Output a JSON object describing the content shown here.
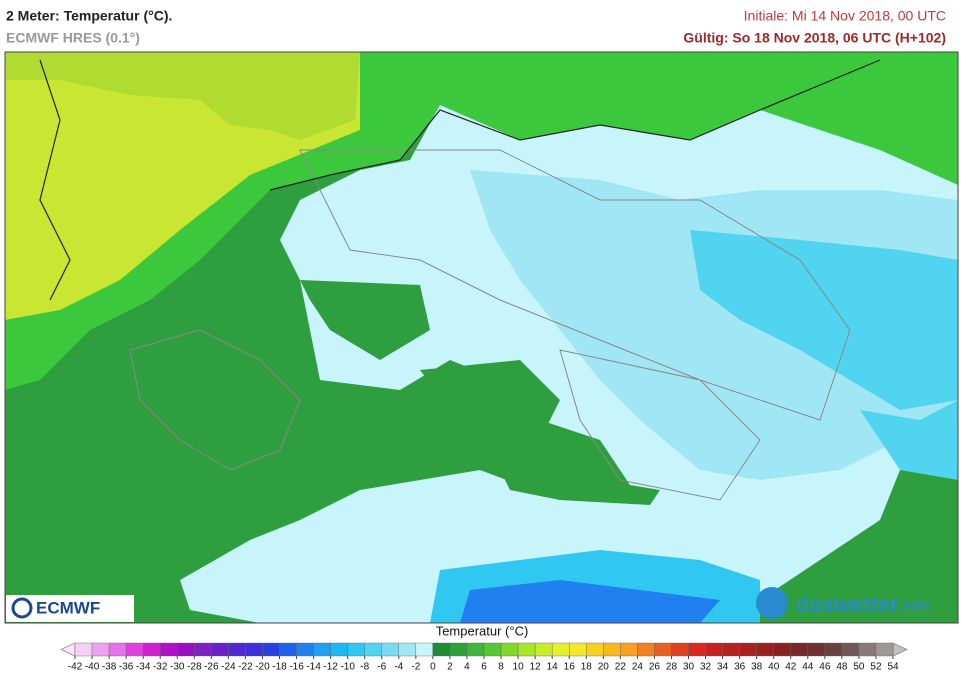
{
  "header": {
    "title": "2 Meter: Temperatur (°C).",
    "model": "ECMWF HRES (0.1°)",
    "init": "Initiale: Mi 14 Nov 2018, 00 UTC",
    "valid": "Gültig: So 18 Nov 2018, 06 UTC (H+102)"
  },
  "logos": {
    "left": "ECMWF",
    "right": "daswetter",
    "right_suffix": ".com"
  },
  "colorbar": {
    "title": "Temperatur (°C)",
    "ticks": [
      -42,
      -40,
      -38,
      -36,
      -34,
      -32,
      -30,
      -28,
      -26,
      -24,
      -22,
      -20,
      -18,
      -16,
      -14,
      -12,
      -10,
      -8,
      -6,
      -4,
      -2,
      0,
      2,
      4,
      6,
      8,
      10,
      12,
      14,
      16,
      18,
      20,
      22,
      24,
      26,
      28,
      30,
      32,
      34,
      36,
      38,
      40,
      42,
      44,
      46,
      48,
      50,
      52,
      54
    ],
    "colors": [
      "#f5d0f5",
      "#f0a0f0",
      "#e870e8",
      "#e040e0",
      "#d020d0",
      "#b010c8",
      "#9810c0",
      "#8020c0",
      "#6a20c8",
      "#5028d0",
      "#3c30d8",
      "#2840e0",
      "#2060e8",
      "#2080f0",
      "#20a0f0",
      "#20b8f0",
      "#30c8f0",
      "#50d4f0",
      "#78dcf0",
      "#a0e6f4",
      "#c8f4fc",
      "#1e8c32",
      "#2ea03c",
      "#40b43c",
      "#58c832",
      "#80d828",
      "#a8e628",
      "#c8ec28",
      "#e6f028",
      "#f8e628",
      "#f8d020",
      "#f8b820",
      "#f8a020",
      "#f08020",
      "#e86020",
      "#e04020",
      "#d82820",
      "#c82020",
      "#b82020",
      "#a82020",
      "#982020",
      "#882020",
      "#782828",
      "#6e3030",
      "#684040",
      "#705858",
      "#887878",
      "#a09898"
    ],
    "low_color": "#fce8fc",
    "high_color": "#c0c0c0"
  }
}
